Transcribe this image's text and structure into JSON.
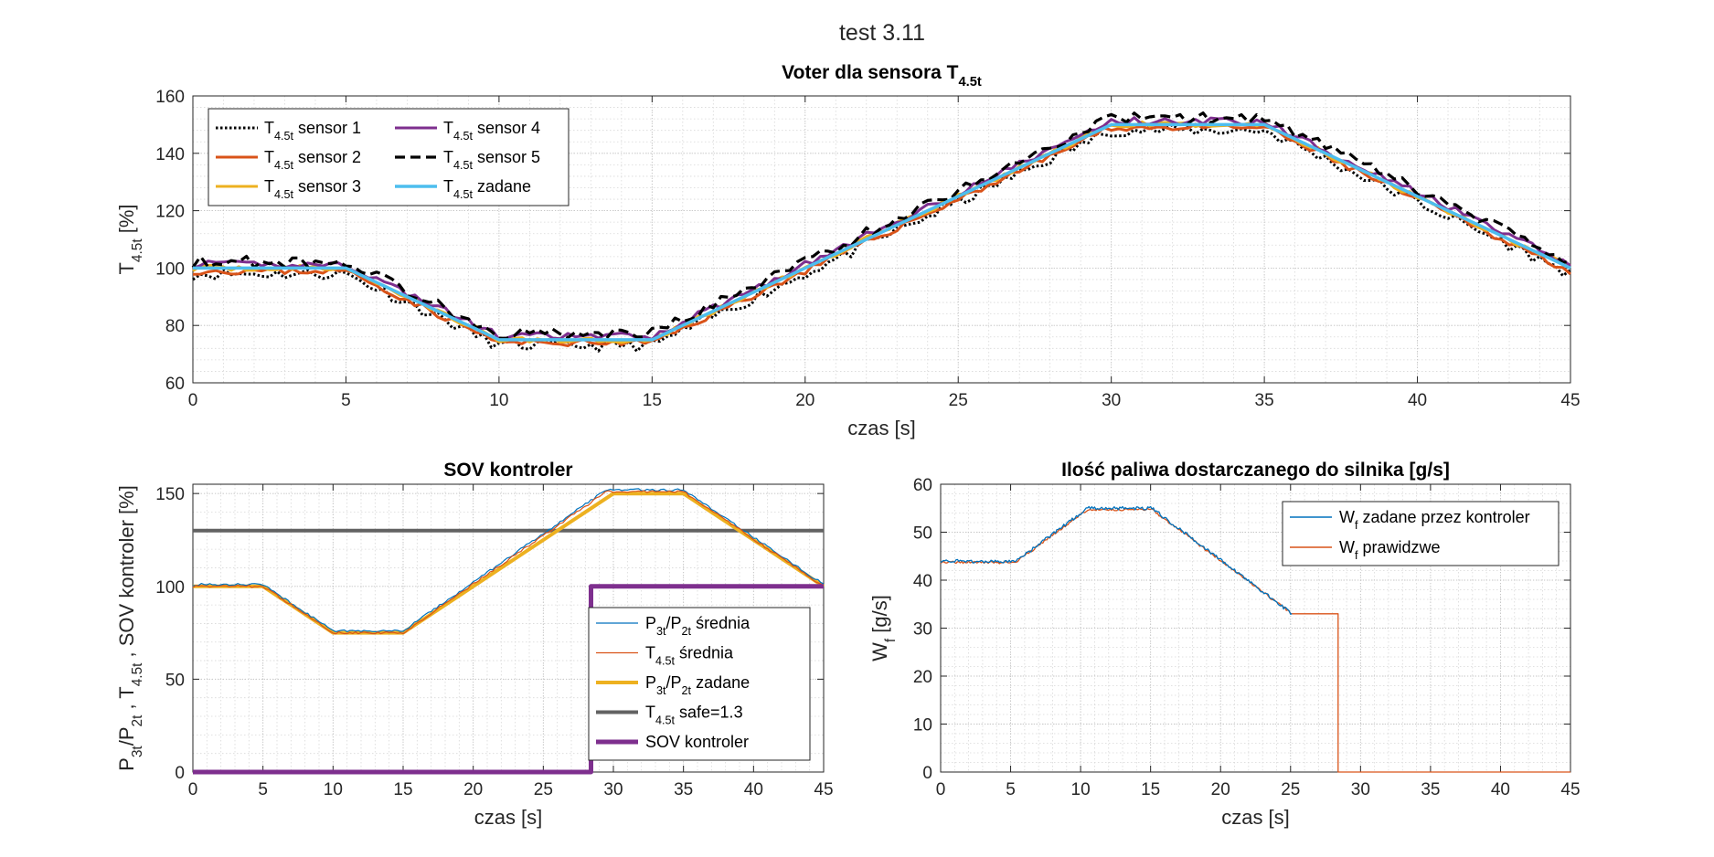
{
  "figure_title": "test  3.11",
  "colors": {
    "sensor1": "#000000",
    "sensor2": "#D95319",
    "sensor3": "#EDB120",
    "sensor4": "#7E2F8E",
    "sensor5": "#000000",
    "zadane": "#4DBEEE",
    "blue": "#0072BD",
    "orange": "#D95319",
    "gray": "#626262"
  },
  "chart_data": [
    {
      "id": "voter",
      "type": "line",
      "title": "Voter dla sensora T",
      "title_sub": "4.5t",
      "xlabel": "czas [s]",
      "ylabel": "T",
      "ylabel_sub": "4.5t",
      "ylabel_tail": " [%]",
      "xlim": [
        0,
        45
      ],
      "ylim": [
        60,
        160
      ],
      "xticks": [
        0,
        5,
        10,
        15,
        20,
        25,
        30,
        35,
        40,
        45
      ],
      "yticks": [
        60,
        80,
        100,
        120,
        140,
        160
      ],
      "grid": "minor",
      "legend_position": "top-left",
      "legend_columns": 2,
      "reference": {
        "x": [
          0,
          5,
          10,
          15,
          30,
          35,
          45
        ],
        "y": [
          100,
          100,
          75,
          75,
          150,
          150,
          100
        ]
      },
      "series": [
        {
          "name": "T",
          "name_sub": "4.5t",
          "name_tail": " sensor 1",
          "color_key": "sensor1",
          "style": "dotted",
          "width": 3,
          "offset": -2,
          "noise": 2.0,
          "seed": 11
        },
        {
          "name": "T",
          "name_sub": "4.5t",
          "name_tail": " sensor 2",
          "color_key": "sensor2",
          "style": "solid",
          "width": 3,
          "offset": -1,
          "noise": 1.2,
          "seed": 23
        },
        {
          "name": "T",
          "name_sub": "4.5t",
          "name_tail": " sensor 3",
          "color_key": "sensor3",
          "style": "solid",
          "width": 3,
          "offset": 0,
          "noise": 1.0,
          "seed": 37
        },
        {
          "name": "T",
          "name_sub": "4.5t",
          "name_tail": " sensor 4",
          "color_key": "sensor4",
          "style": "solid",
          "width": 3,
          "offset": 1.2,
          "noise": 1.3,
          "seed": 41
        },
        {
          "name": "T",
          "name_sub": "4.5t",
          "name_tail": " sensor 5",
          "color_key": "sensor5",
          "style": "dashed",
          "width": 3.2,
          "offset": 2.2,
          "noise": 2.0,
          "seed": 53
        },
        {
          "name": "T",
          "name_sub": "4.5t",
          "name_tail": " zadane",
          "color_key": "zadane",
          "style": "solid",
          "width": 3.5,
          "offset": 0,
          "noise": 0,
          "seed": 0
        }
      ]
    },
    {
      "id": "sov",
      "type": "line",
      "title": "SOV kontroler",
      "xlabel": "czas [s]",
      "ylabel_parts": [
        {
          "t": "P",
          "sub": "3t"
        },
        {
          "t": "/P",
          "sub": "2t"
        },
        {
          "t": " , T",
          "sub": "4.5t"
        },
        {
          "t": " , SOV kontroler [%]"
        }
      ],
      "xlim": [
        0,
        45
      ],
      "ylim": [
        0,
        155
      ],
      "xticks": [
        0,
        5,
        10,
        15,
        20,
        25,
        30,
        35,
        40,
        45
      ],
      "yticks": [
        0,
        50,
        100,
        150
      ],
      "grid": "minor",
      "legend_position": "bottom-right",
      "series": [
        {
          "name": "P",
          "name_parts": [
            {
              "t": "P",
              "sub": "3t"
            },
            {
              "t": "/P",
              "sub": "2t"
            },
            {
              "t": " średnia"
            }
          ],
          "color_key": "blue",
          "width": 1.2,
          "x": [
            0,
            5,
            10,
            15,
            29.5,
            35,
            45
          ],
          "y": [
            101,
            101,
            76,
            76,
            152,
            152,
            101
          ],
          "noise": 0.6,
          "seed": 61
        },
        {
          "name": "T",
          "name_parts": [
            {
              "t": "T",
              "sub": "4.5t"
            },
            {
              "t": " średnia"
            }
          ],
          "color_key": "orange",
          "width": 1.2,
          "x": [
            0,
            5,
            10,
            15,
            29.5,
            35,
            45
          ],
          "y": [
            100,
            100,
            75,
            75,
            151,
            151,
            100
          ],
          "noise": 0.6,
          "seed": 67
        },
        {
          "name": "P",
          "name_parts": [
            {
              "t": "P",
              "sub": "3t"
            },
            {
              "t": "/P",
              "sub": "2t"
            },
            {
              "t": " zadane"
            }
          ],
          "color_key": "sensor3",
          "width": 4,
          "x": [
            0,
            5,
            10,
            15,
            30,
            35,
            45
          ],
          "y": [
            100,
            100,
            75,
            75,
            150,
            150,
            100
          ],
          "noise": 0,
          "seed": 0
        },
        {
          "name": "T",
          "name_parts": [
            {
              "t": "T",
              "sub": "4.5t"
            },
            {
              "t": " safe=1.3"
            }
          ],
          "color_key": "gray",
          "width": 4,
          "x": [
            0,
            45
          ],
          "y": [
            130,
            130
          ],
          "noise": 0,
          "seed": 0
        },
        {
          "name": "SOV kontroler",
          "name_parts": [
            {
              "t": "SOV kontroler"
            }
          ],
          "color_key": "sensor4",
          "width": 5,
          "x": [
            0,
            28.4,
            28.4,
            45
          ],
          "y": [
            0,
            0,
            100,
            100
          ],
          "noise": 0,
          "seed": 0
        }
      ]
    },
    {
      "id": "fuel",
      "type": "line",
      "title": "Ilość paliwa dostarczanego do silnika [g/s]",
      "xlabel": "czas [s]",
      "ylabel_parts": [
        {
          "t": "W",
          "sub": "f"
        },
        {
          "t": "  [g/s]"
        }
      ],
      "xlim": [
        0,
        45
      ],
      "ylim": [
        0,
        60
      ],
      "xticks": [
        0,
        5,
        10,
        15,
        20,
        25,
        30,
        35,
        40,
        45
      ],
      "yticks": [
        0,
        10,
        20,
        30,
        40,
        50,
        60
      ],
      "grid": "minor",
      "legend_position": "top-right",
      "series": [
        {
          "name": "W",
          "name_parts": [
            {
              "t": "W",
              "sub": "f"
            },
            {
              "t": " zadane przez kontroler"
            }
          ],
          "color_key": "blue",
          "width": 1.3,
          "x": [
            0,
            5.3,
            10.5,
            15.1,
            25.1
          ],
          "y": [
            44,
            43.8,
            55,
            55,
            33
          ],
          "noise": 0.35,
          "seed": 71
        },
        {
          "name": "W",
          "name_parts": [
            {
              "t": "W",
              "sub": "f"
            },
            {
              "t": " prawidzwe"
            }
          ],
          "color_key": "orange",
          "width": 1.3,
          "x": [
            0,
            5.3,
            10.5,
            15.1,
            25.1,
            28.4,
            28.4,
            45
          ],
          "y": [
            43.8,
            43.6,
            54.7,
            54.7,
            33,
            33,
            0,
            0
          ],
          "noise": 0.25,
          "seed": 79
        }
      ]
    }
  ]
}
